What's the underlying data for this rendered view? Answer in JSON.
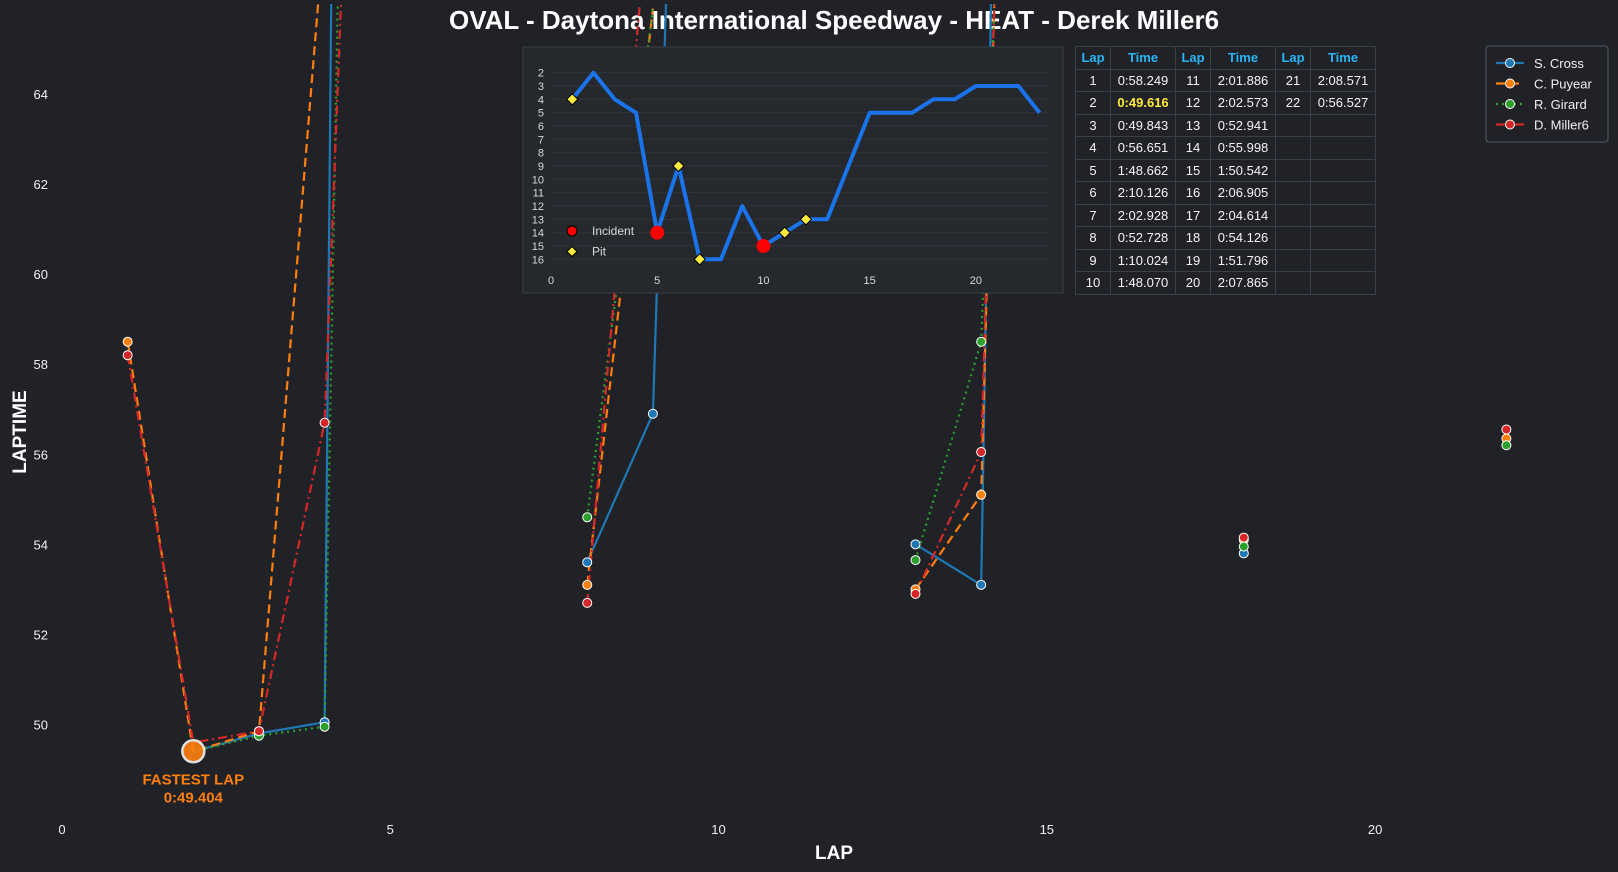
{
  "title": "OVAL - Daytona International Speedway - HEAT - Derek Miller6",
  "chart_data": [
    {
      "type": "line",
      "title": "OVAL - Daytona International Speedway - HEAT - Derek Miller6",
      "xlabel": "LAP",
      "ylabel": "LAPTIME",
      "xlim": [
        0,
        23.7
      ],
      "ylim": [
        48.1,
        65.2
      ],
      "xticks": [
        0,
        5,
        10,
        15,
        20
      ],
      "yticks": [
        50,
        52,
        54,
        56,
        58,
        60,
        62,
        64
      ],
      "grid": false,
      "legend_position": "top-right",
      "series": [
        {
          "name": "S. Cross",
          "color": "#1f77b4",
          "dash": "solid",
          "points": [
            [
              2,
              49.4
            ],
            [
              3,
              49.8
            ],
            [
              4,
              50.05
            ],
            [
              4.1,
              66
            ],
            [
              null,
              null
            ],
            [
              8,
              53.6
            ],
            [
              9,
              56.9
            ],
            [
              9.2,
              66
            ],
            [
              null,
              null
            ],
            [
              13,
              54.0
            ],
            [
              14,
              53.1
            ],
            [
              14.15,
              66
            ],
            [
              null,
              null
            ],
            [
              18,
              53.8
            ],
            [
              null,
              null
            ],
            [
              22,
              null
            ]
          ]
        },
        {
          "name": "C. Puyear",
          "color": "#ff7f0e",
          "dash": "dashed",
          "points": [
            [
              1,
              58.5
            ],
            [
              2,
              49.4
            ],
            [
              3,
              49.85
            ],
            [
              3.9,
              66
            ],
            [
              null,
              null
            ],
            [
              8,
              53.1
            ],
            [
              9,
              65.9
            ],
            [
              null,
              null
            ],
            [
              13,
              53.0
            ],
            [
              14,
              55.1
            ],
            [
              14.2,
              66
            ],
            [
              null,
              null
            ],
            [
              18,
              54.1
            ],
            [
              null,
              null
            ],
            [
              22,
              56.35
            ]
          ]
        },
        {
          "name": "R. Girard",
          "color": "#2ca02c",
          "dash": "dotted",
          "points": [
            [
              2,
              49.4
            ],
            [
              3,
              49.75
            ],
            [
              4,
              49.95
            ],
            [
              4.2,
              66
            ],
            [
              null,
              null
            ],
            [
              8,
              54.6
            ],
            [
              9,
              65.9
            ],
            [
              null,
              null
            ],
            [
              13,
              53.65
            ],
            [
              14,
              58.5
            ],
            [
              14.2,
              66
            ],
            [
              null,
              null
            ],
            [
              18,
              53.95
            ],
            [
              null,
              null
            ],
            [
              22,
              56.2
            ]
          ]
        },
        {
          "name": "D. Miller6",
          "color": "#d62728",
          "dash": "dashdot",
          "points": [
            [
              1,
              58.2
            ],
            [
              2,
              49.6
            ],
            [
              3,
              49.85
            ],
            [
              4,
              56.7
            ],
            [
              4.25,
              66
            ],
            [
              null,
              null
            ],
            [
              8,
              52.7
            ],
            [
              8.8,
              66
            ],
            [
              null,
              null
            ],
            [
              13,
              52.9
            ],
            [
              14,
              56.05
            ],
            [
              14.2,
              66
            ],
            [
              null,
              null
            ],
            [
              18,
              54.15
            ],
            [
              null,
              null
            ],
            [
              22,
              56.55
            ]
          ]
        }
      ],
      "markers": [
        {
          "series": "S. Cross",
          "points": [
            [
              4,
              50.05
            ],
            [
              8,
              53.6
            ],
            [
              9,
              56.9
            ],
            [
              13,
              54.0
            ],
            [
              14,
              53.1
            ],
            [
              18,
              53.8
            ]
          ]
        },
        {
          "series": "C. Puyear",
          "points": [
            [
              1,
              58.5
            ],
            [
              3,
              49.85
            ],
            [
              8,
              53.1
            ],
            [
              13,
              53.0
            ],
            [
              14,
              55.1
            ],
            [
              18,
              54.1
            ],
            [
              22,
              56.35
            ]
          ]
        },
        {
          "series": "R. Girard",
          "points": [
            [
              3,
              49.75
            ],
            [
              4,
              49.95
            ],
            [
              8,
              54.6
            ],
            [
              13,
              53.65
            ],
            [
              14,
              58.5
            ],
            [
              18,
              53.95
            ],
            [
              22,
              56.2
            ]
          ]
        },
        {
          "series": "D. Miller6",
          "points": [
            [
              1,
              58.2
            ],
            [
              3,
              49.85
            ],
            [
              4,
              56.7
            ],
            [
              8,
              52.7
            ],
            [
              13,
              52.9
            ],
            [
              14,
              56.05
            ],
            [
              18,
              54.15
            ],
            [
              22,
              56.55
            ]
          ]
        }
      ],
      "annotation": {
        "lines": [
          "FASTEST LAP",
          "0:49.404"
        ],
        "x": 2,
        "y": 49.404
      }
    },
    {
      "type": "line",
      "title": "",
      "xlim": [
        0,
        24.1
      ],
      "ylim": [
        16.5,
        1.2
      ],
      "xticks": [
        0,
        5,
        10,
        15,
        20
      ],
      "yticks": [
        2,
        3,
        4,
        5,
        6,
        7,
        8,
        9,
        10,
        11,
        12,
        13,
        14,
        15,
        16
      ],
      "series": [
        {
          "name": "Position",
          "color": "#1a73e8",
          "points": [
            [
              1,
              4
            ],
            [
              2,
              2
            ],
            [
              3,
              4
            ],
            [
              4,
              5
            ],
            [
              5,
              14
            ],
            [
              6,
              9
            ],
            [
              7,
              16
            ],
            [
              8,
              16
            ],
            [
              9,
              12
            ],
            [
              10,
              15
            ],
            [
              11,
              14
            ],
            [
              12,
              13
            ],
            [
              13,
              13
            ],
            [
              14,
              9
            ],
            [
              15,
              5
            ],
            [
              16,
              5
            ],
            [
              17,
              5
            ],
            [
              18,
              4
            ],
            [
              19,
              4
            ],
            [
              20,
              3
            ],
            [
              21,
              3
            ],
            [
              22,
              3
            ],
            [
              23,
              5
            ]
          ]
        }
      ],
      "legend": [
        {
          "label": "Incident",
          "color": "#ff0000"
        },
        {
          "label": "Pit",
          "color": "#ffeb3b"
        }
      ],
      "incidents": [
        [
          5,
          14
        ],
        [
          10,
          15
        ]
      ],
      "pits": [
        [
          1,
          4
        ],
        [
          6,
          9
        ],
        [
          7,
          16
        ],
        [
          11,
          14
        ],
        [
          12,
          13
        ]
      ]
    }
  ],
  "table": {
    "headers": [
      "Lap",
      "Time",
      "Lap",
      "Time",
      "Lap",
      "Time"
    ],
    "rows": [
      [
        "1",
        "0:58.249",
        "11",
        "2:01.886",
        "21",
        "2:08.571"
      ],
      [
        "2",
        "0:49.616",
        "12",
        "2:02.573",
        "22",
        "0:56.527"
      ],
      [
        "3",
        "0:49.843",
        "13",
        "0:52.941",
        "",
        ""
      ],
      [
        "4",
        "0:56.651",
        "14",
        "0:55.998",
        "",
        ""
      ],
      [
        "5",
        "1:48.662",
        "15",
        "1:50.542",
        "",
        ""
      ],
      [
        "6",
        "2:10.126",
        "16",
        "2:06.905",
        "",
        ""
      ],
      [
        "7",
        "2:02.928",
        "17",
        "2:04.614",
        "",
        ""
      ],
      [
        "8",
        "0:52.728",
        "18",
        "0:54.126",
        "",
        ""
      ],
      [
        "9",
        "1:10.024",
        "19",
        "1:51.796",
        "",
        ""
      ],
      [
        "10",
        "1:48.070",
        "20",
        "2:07.865",
        "",
        ""
      ]
    ],
    "highlight_time": "0:49.616"
  }
}
